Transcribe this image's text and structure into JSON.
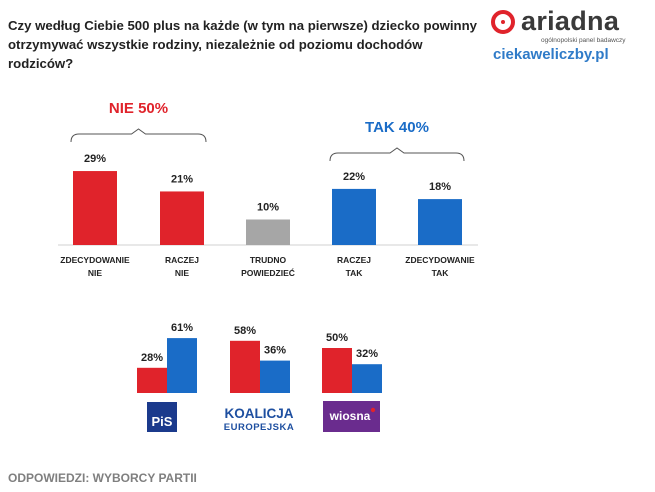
{
  "question": "Czy według Ciebie 500 plus na każde (w tym na pierwsze) dziecko powinny otrzymywać wszystkie rodziny, niezależnie od poziomu dochodów rodziców?",
  "brand": {
    "name": "ariadna",
    "tagline": "ogólnopolski panel badawczy",
    "site": "ciekaweliczby.pl"
  },
  "colors": {
    "red": "#e0232b",
    "blue": "#1a6cc7",
    "grey": "#a6a6a6",
    "pis": "#1b3a8c",
    "ko": "#1e4fa0",
    "wiosna": "#6a2c8e"
  },
  "footer": "ODPOWIEDZI: WYBORCY PARTII",
  "chart_data": [
    {
      "type": "bar",
      "title": "",
      "ylim": [
        0,
        35
      ],
      "categories": [
        [
          "ZDECYDOWANIE",
          "NIE"
        ],
        [
          "RACZEJ",
          "NIE"
        ],
        [
          "TRUDNO",
          "POWIEDZIEĆ"
        ],
        [
          "RACZEJ",
          "TAK"
        ],
        [
          "ZDECYDOWANIE",
          "TAK"
        ]
      ],
      "values": [
        29,
        21,
        10,
        22,
        18
      ],
      "value_labels": [
        "29%",
        "21%",
        "10%",
        "22%",
        "18%"
      ],
      "bar_colors": [
        "red",
        "red",
        "grey",
        "blue",
        "blue"
      ],
      "groups": [
        {
          "label": "NIE 50%",
          "from": 0,
          "to": 1,
          "color": "red"
        },
        {
          "label": "TAK 40%",
          "from": 3,
          "to": 4,
          "color": "blue"
        }
      ]
    },
    {
      "type": "bar",
      "title": "",
      "ylim": [
        0,
        70
      ],
      "series": [
        {
          "name": "NIE",
          "color": "red"
        },
        {
          "name": "TAK",
          "color": "blue"
        }
      ],
      "categories": [
        "PiS",
        "KOALICJA EUROPEJSKA",
        "wiosna"
      ],
      "values": [
        [
          28,
          61
        ],
        [
          58,
          36
        ],
        [
          50,
          32
        ]
      ],
      "value_labels": [
        [
          "28%",
          "61%"
        ],
        [
          "58%",
          "36%"
        ],
        [
          "50%",
          "32%"
        ]
      ],
      "party_logos": [
        {
          "name": "pis",
          "text": "PiS",
          "color": "pis"
        },
        {
          "name": "koalicja-europejska",
          "line1": "KOALICJA",
          "line2": "EUROPEJSKA",
          "color": "ko"
        },
        {
          "name": "wiosna",
          "text": "wiosna",
          "color": "wiosna"
        }
      ]
    }
  ]
}
